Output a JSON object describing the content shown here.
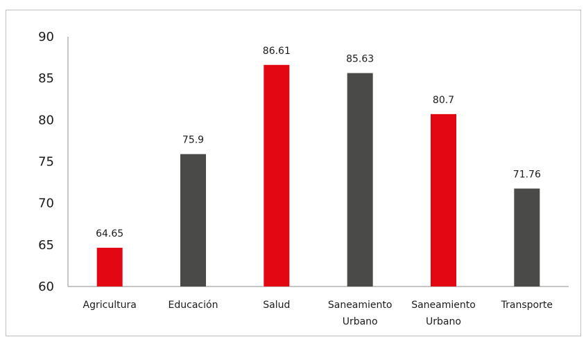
{
  "chart_data": {
    "type": "bar",
    "categories": [
      [
        "Agricultura"
      ],
      [
        "Educación"
      ],
      [
        "Salud"
      ],
      [
        "Saneamiento",
        "Urbano"
      ],
      [
        "Saneamiento",
        "Urbano"
      ],
      [
        "Transporte"
      ]
    ],
    "values": [
      64.65,
      75.9,
      86.61,
      85.63,
      80.7,
      71.76
    ],
    "data_labels": [
      "64.65",
      "75.9",
      "86.61",
      "85.63",
      "80.7",
      "71.76"
    ],
    "bar_colors": [
      "#e30613",
      "#4a4a48",
      "#e30613",
      "#4a4a48",
      "#e30613",
      "#4a4a48"
    ],
    "ylim": [
      60,
      90
    ],
    "yticks": [
      "60",
      "65",
      "70",
      "75",
      "80",
      "85",
      "90"
    ],
    "title": "",
    "xlabel": "",
    "ylabel": "",
    "grid": false,
    "legend": "none"
  }
}
